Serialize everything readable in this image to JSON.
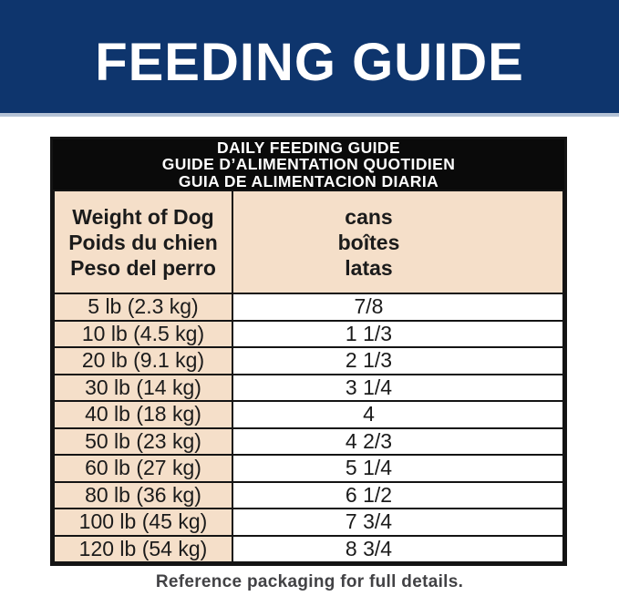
{
  "banner": {
    "title": "FEEDING GUIDE",
    "bg_color": "#0e356d",
    "text_color": "#ffffff"
  },
  "table": {
    "title_lines": [
      "DAILY FEEDING GUIDE",
      "GUIDE D’ALIMENTATION QUOTIDIEN",
      "GUIA DE ALIMENTACION DIARIA"
    ],
    "weight_header_lines": [
      "Weight of Dog",
      "Poids du chien",
      "Peso del perro"
    ],
    "cans_header_lines": [
      "cans",
      "boîtes",
      "latas"
    ],
    "rows": [
      {
        "weight": "5 lb (2.3 kg)",
        "cans": "7/8"
      },
      {
        "weight": "10 lb (4.5 kg)",
        "cans": "1 1/3"
      },
      {
        "weight": "20 lb (9.1 kg)",
        "cans": "2 1/3"
      },
      {
        "weight": "30 lb (14 kg)",
        "cans": "3 1/4"
      },
      {
        "weight": "40 lb (18 kg)",
        "cans": "4"
      },
      {
        "weight": "50 lb (23 kg)",
        "cans": "4 2/3"
      },
      {
        "weight": "60 lb (27 kg)",
        "cans": "5 1/4"
      },
      {
        "weight": "80 lb (36 kg)",
        "cans": "6 1/2"
      },
      {
        "weight": "100 lb (45 kg)",
        "cans": "7 3/4"
      },
      {
        "weight": "120 lb (54 kg)",
        "cans": "8 3/4"
      }
    ],
    "colors": {
      "title_bg": "#0a0a0a",
      "header_cell_bg": "#f5dfc9",
      "data_cell_bg": "#ffffff",
      "grid_line": "#141414"
    }
  },
  "footer": {
    "note": "Reference packaging for full details."
  }
}
